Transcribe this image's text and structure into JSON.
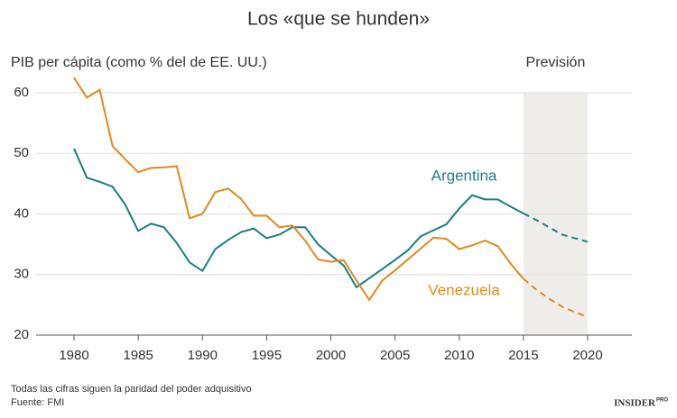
{
  "chart_data": {
    "type": "line",
    "title": "Los «que se hunden»",
    "y_label": "PIB per cápita (como % del de EE. UU.)",
    "x": [
      1980,
      1981,
      1982,
      1983,
      1984,
      1985,
      1986,
      1987,
      1988,
      1989,
      1990,
      1991,
      1992,
      1993,
      1994,
      1995,
      1996,
      1997,
      1998,
      1999,
      2000,
      2001,
      2002,
      2003,
      2004,
      2005,
      2006,
      2007,
      2008,
      2009,
      2010,
      2011,
      2012,
      2013,
      2014,
      2015,
      2016,
      2017,
      2018,
      2019,
      2020
    ],
    "series": [
      {
        "name": "Argentina",
        "color": "#1b7f80",
        "values": [
          50.8,
          46,
          45.3,
          44.5,
          41.5,
          37.2,
          38.4,
          37.8,
          35.2,
          32,
          30.6,
          34.2,
          35.7,
          37,
          37.6,
          36,
          36.6,
          37.8,
          37.8,
          35,
          33.2,
          31.5,
          27.9,
          29.4,
          30.9,
          32.4,
          34,
          36.3,
          37.3,
          38.3,
          40.9,
          43.1,
          42.4,
          42.4,
          41.2,
          40.1,
          39,
          37.8,
          36.6,
          36,
          35.4
        ]
      },
      {
        "name": "Venezuela",
        "color": "#e08a1e",
        "values": [
          62.5,
          59.2,
          60.5,
          51.2,
          49,
          46.9,
          47.6,
          47.7,
          47.9,
          39.3,
          40,
          43.6,
          44.2,
          42.5,
          39.7,
          39.7,
          37.8,
          38.1,
          35.6,
          32.5,
          32.1,
          32.4,
          29,
          25.8,
          29,
          30.7,
          32.5,
          34.3,
          36.1,
          35.9,
          34.2,
          34.8,
          35.6,
          34.7,
          31.8,
          29.3,
          27.5,
          26,
          24.7,
          23.8,
          23
        ]
      }
    ],
    "forecast": {
      "label": "Previsión",
      "range": [
        2015,
        2020
      ]
    },
    "xlim": [
      1980,
      2020
    ],
    "xticks": [
      1980,
      1985,
      1990,
      1995,
      2000,
      2005,
      2010,
      2015,
      2020
    ],
    "ylim": [
      20,
      60
    ],
    "yticks": [
      20,
      30,
      40,
      50,
      60
    ],
    "grid": true,
    "notes": [
      "Todas las cifras siguen la paridad del poder adquisitivo",
      "Fuente: FMI"
    ],
    "logo": {
      "main": "INSIDER",
      "sup": "PRO"
    }
  }
}
